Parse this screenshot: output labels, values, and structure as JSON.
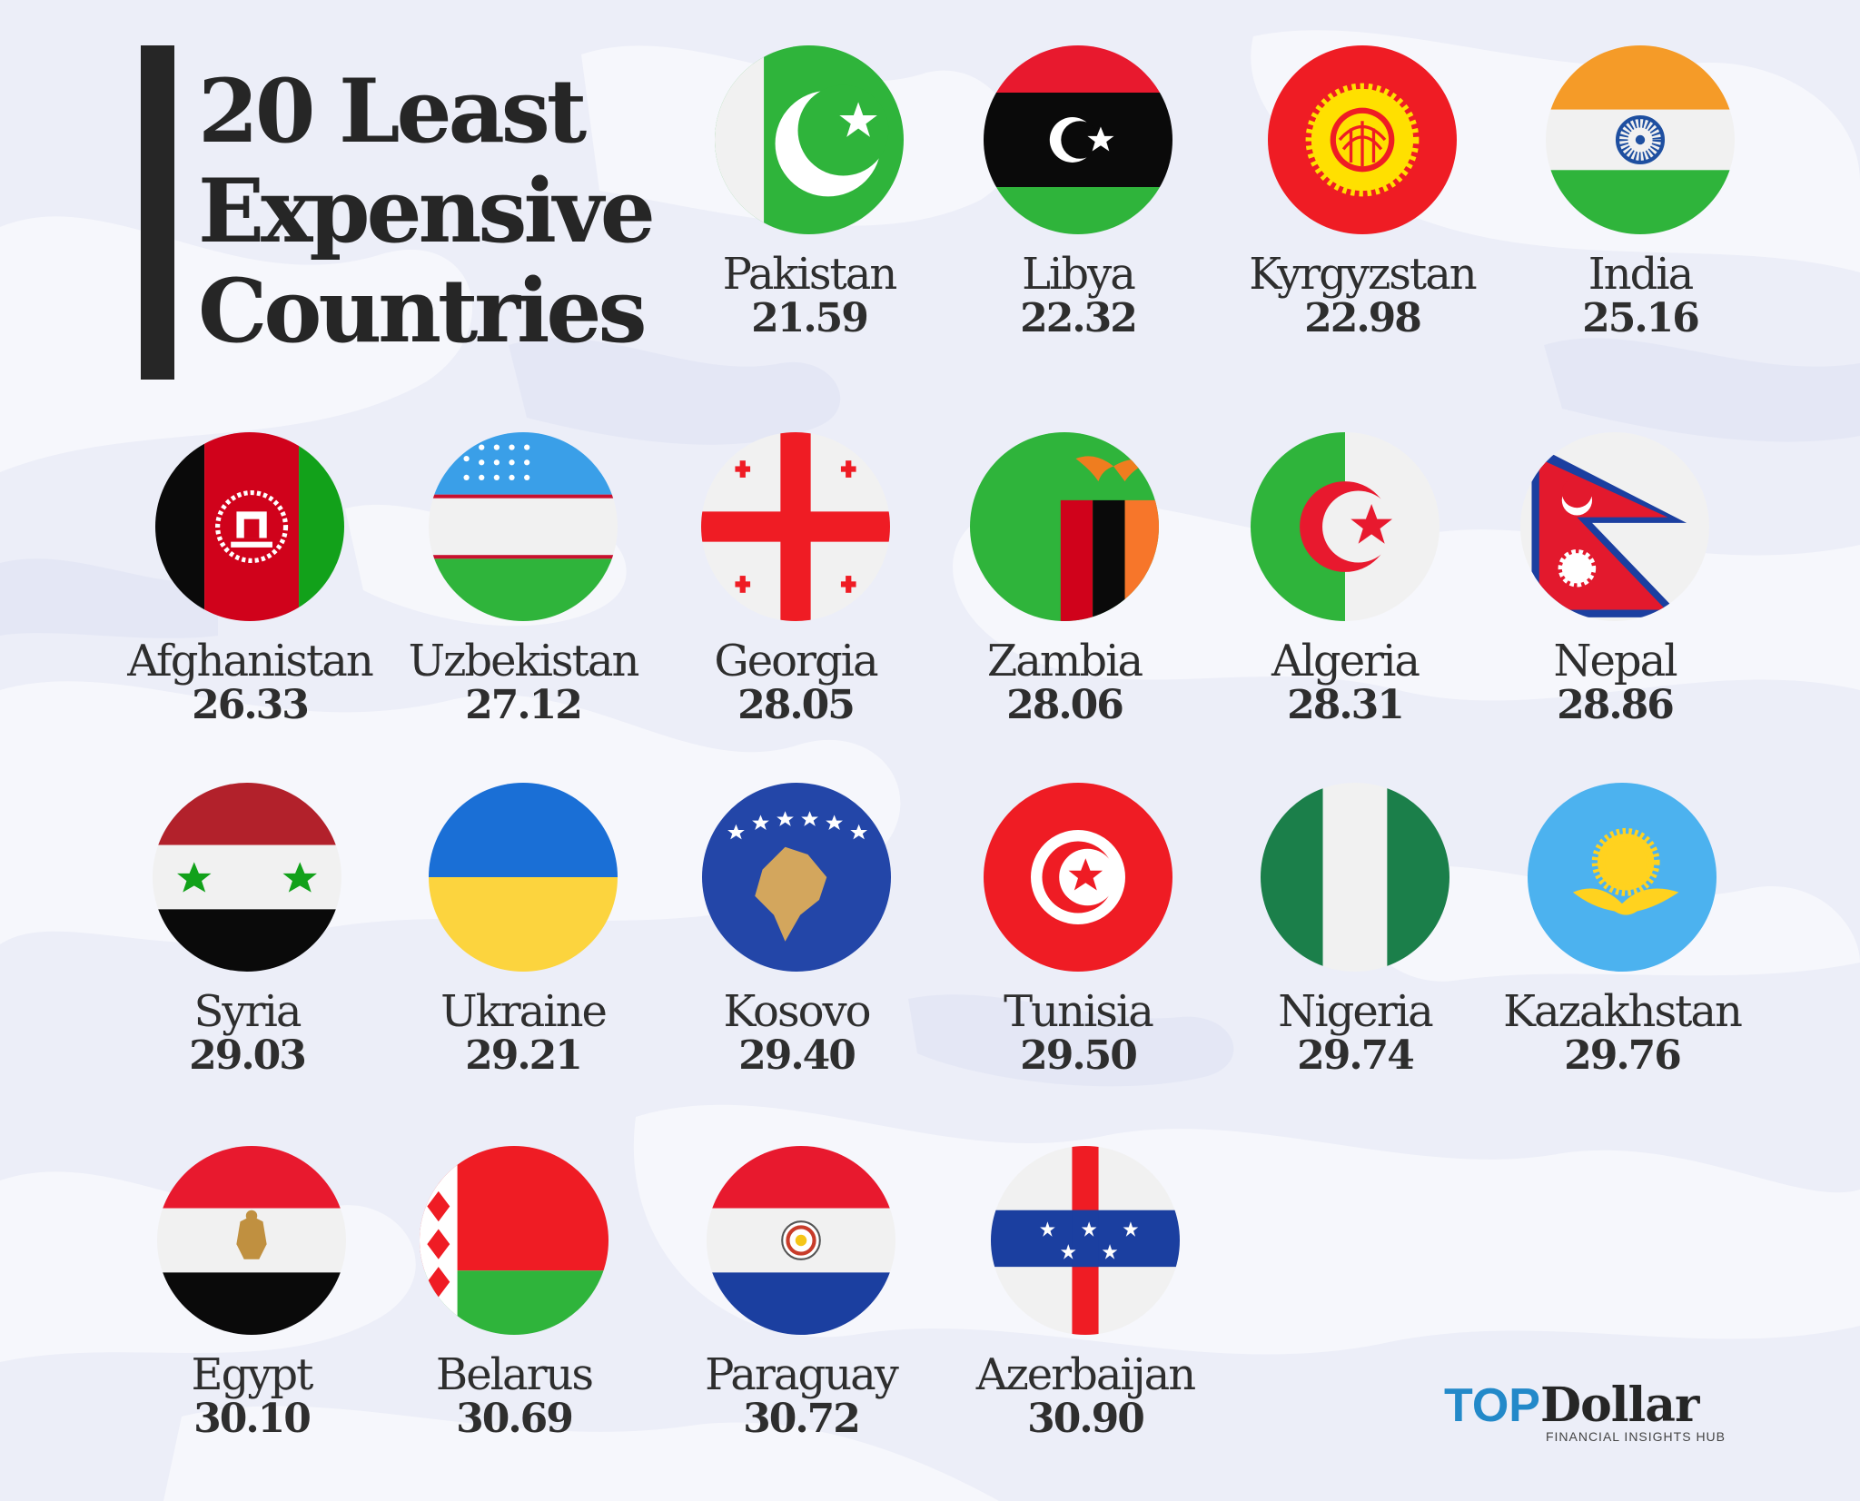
{
  "title": {
    "line1": "20 Least",
    "line2": "Expensive",
    "line3": "Countries"
  },
  "countries": [
    {
      "name": "Pakistan",
      "value": "21.59",
      "flag": "pakistan-flag"
    },
    {
      "name": "Libya",
      "value": "22.32",
      "flag": "libya-flag"
    },
    {
      "name": "Kyrgyzstan",
      "value": "22.98",
      "flag": "kyrgyzstan-flag"
    },
    {
      "name": "India",
      "value": "25.16",
      "flag": "india-flag"
    },
    {
      "name": "Afghanistan",
      "value": "26.33",
      "flag": "afghanistan-flag"
    },
    {
      "name": "Uzbekistan",
      "value": "27.12",
      "flag": "uzbekistan-flag"
    },
    {
      "name": "Georgia",
      "value": "28.05",
      "flag": "georgia-flag"
    },
    {
      "name": "Zambia",
      "value": "28.06",
      "flag": "zambia-flag"
    },
    {
      "name": "Algeria",
      "value": "28.31",
      "flag": "algeria-flag"
    },
    {
      "name": "Nepal",
      "value": "28.86",
      "flag": "nepal-flag"
    },
    {
      "name": "Syria",
      "value": "29.03",
      "flag": "syria-flag"
    },
    {
      "name": "Ukraine",
      "value": "29.21",
      "flag": "ukraine-flag"
    },
    {
      "name": "Kosovo",
      "value": "29.40",
      "flag": "kosovo-flag"
    },
    {
      "name": "Tunisia",
      "value": "29.50",
      "flag": "tunisia-flag"
    },
    {
      "name": "Nigeria",
      "value": "29.74",
      "flag": "nigeria-flag"
    },
    {
      "name": "Kazakhstan",
      "value": "29.76",
      "flag": "kazakhstan-flag"
    },
    {
      "name": "Egypt",
      "value": "30.10",
      "flag": "egypt-flag"
    },
    {
      "name": "Belarus",
      "value": "30.69",
      "flag": "belarus-flag"
    },
    {
      "name": "Paraguay",
      "value": "30.72",
      "flag": "paraguay-flag"
    },
    {
      "name": "Azerbaijan",
      "value": "30.90",
      "flag": "azerbaijan-flag"
    }
  ],
  "brand": {
    "top": "TOP",
    "dollar": "Dollar",
    "tagline": "FINANCIAL INSIGHTS HUB"
  },
  "colors": {
    "background": "#eceef8",
    "text": "#2e2e2e",
    "title_bar": "#262626",
    "brand_blue": "#2389c9"
  }
}
